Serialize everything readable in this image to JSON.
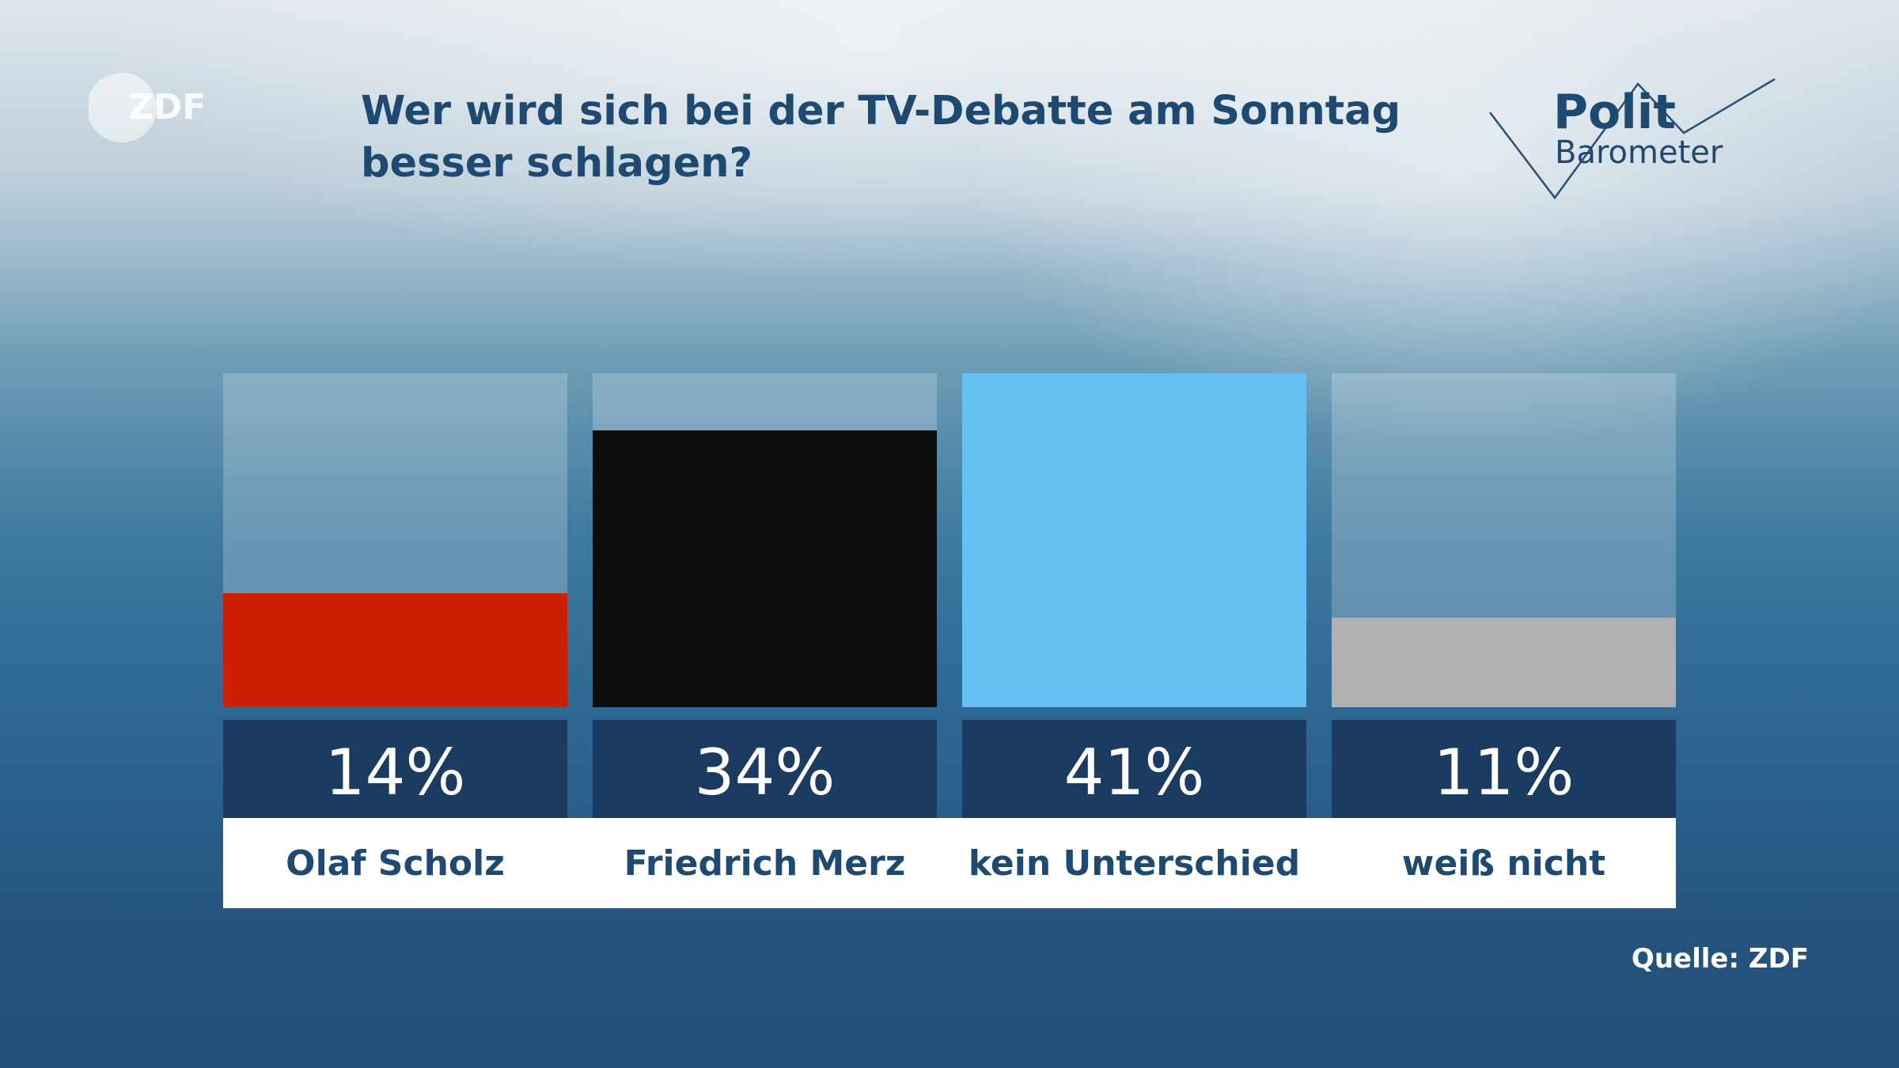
{
  "header": {
    "title": "Wer wird sich bei der TV-Debatte am Sonntag besser schlagen?",
    "logo_text": "ZDF",
    "brand_line1": "Polit",
    "brand_line2": "Barometer"
  },
  "footer": {
    "source": "Quelle: ZDF"
  },
  "colors": {
    "title": "#1e4a72",
    "value_box": "#1c3b60",
    "label_text": "#1e4a72"
  },
  "chart_data": {
    "type": "bar",
    "categories": [
      "Olaf Scholz",
      "Friedrich Merz",
      "kein Unterschied",
      "weiß nicht"
    ],
    "values": [
      14,
      34,
      41,
      11
    ],
    "value_labels": [
      "14%",
      "34%",
      "41%",
      "11%"
    ],
    "colors": [
      "#cc1e00",
      "#0d0d0d",
      "#66c0f4",
      "#b1b1b1"
    ],
    "ylim": [
      0,
      41
    ],
    "grid": false,
    "legend": "none"
  }
}
